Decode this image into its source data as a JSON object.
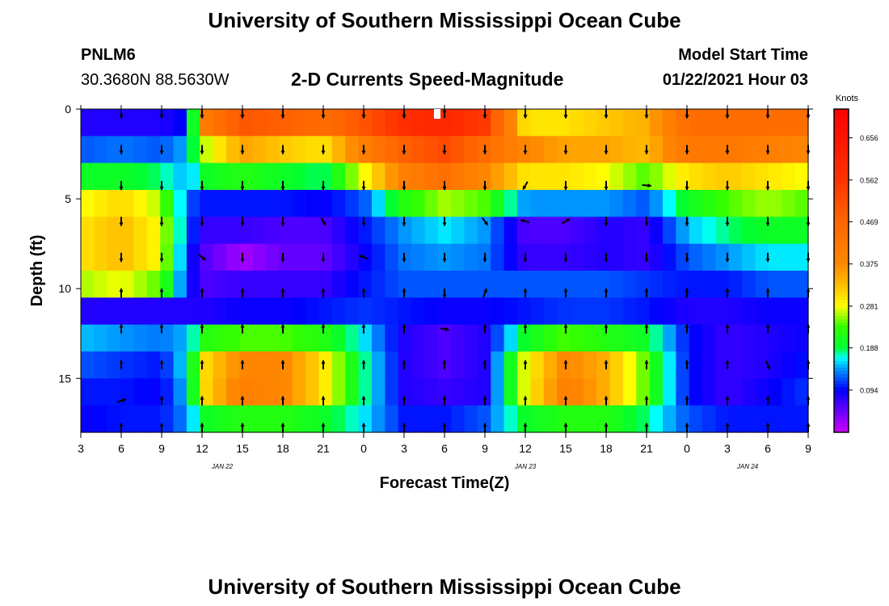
{
  "page": {
    "title_top": "University of Southern Mississippi Ocean Cube",
    "title_bottom": "University of Southern Mississippi Ocean Cube",
    "station_id": "PNLM6",
    "station_coords": "30.3680N 88.5630W",
    "plot_title": "2-D Currents Speed-Magnitude",
    "model_start_label": "Model Start Time",
    "model_start_value": "01/22/2021 Hour 03"
  },
  "chart_data": {
    "type": "heatmap",
    "title": "2-D Currents Speed-Magnitude",
    "xlabel": "Forecast Time(Z)",
    "ylabel": "Depth (ft)",
    "x_tick_labels": [
      "3",
      "6",
      "9",
      "12",
      "15",
      "18",
      "21",
      "0",
      "3",
      "6",
      "9",
      "12",
      "15",
      "18",
      "21",
      "0",
      "3",
      "6",
      "9"
    ],
    "x_hours_from_start": [
      0,
      3,
      6,
      9,
      12,
      15,
      18,
      21,
      24,
      27,
      30,
      33,
      36,
      39,
      42,
      45,
      48,
      51,
      54
    ],
    "date_labels": [
      {
        "text": "JAN 22",
        "hour": 10.5
      },
      {
        "text": "JAN 23",
        "hour": 33
      },
      {
        "text": "JAN 24",
        "hour": 49.5
      }
    ],
    "y_ticks": [
      0,
      5,
      10,
      15
    ],
    "y_tick_labels": [
      "0",
      "5",
      "10",
      "15"
    ],
    "ylim": [
      0,
      18
    ],
    "y_inverted": true,
    "x_range_hours": [
      0,
      54
    ],
    "colorbar": {
      "label": "Knots",
      "ticks": [
        0.094,
        0.188,
        0.281,
        0.375,
        0.469,
        0.562,
        0.656
      ],
      "tick_labels": [
        "0.094",
        "0.188",
        "0.281",
        "0.375",
        "0.469",
        "0.562",
        "0.656"
      ],
      "range": [
        0,
        0.72
      ],
      "stops": [
        {
          "v": 0.0,
          "c": "#cc00ff"
        },
        {
          "v": 0.047,
          "c": "#6a00ff"
        },
        {
          "v": 0.094,
          "c": "#0000ff"
        },
        {
          "v": 0.141,
          "c": "#0099ff"
        },
        {
          "v": 0.165,
          "c": "#00ffff"
        },
        {
          "v": 0.188,
          "c": "#00ff33"
        },
        {
          "v": 0.235,
          "c": "#33ff00"
        },
        {
          "v": 0.281,
          "c": "#ffff00"
        },
        {
          "v": 0.33,
          "c": "#ffbb00"
        },
        {
          "v": 0.375,
          "c": "#ff8800"
        },
        {
          "v": 0.469,
          "c": "#ff6600"
        },
        {
          "v": 0.562,
          "c": "#ff3300"
        },
        {
          "v": 0.72,
          "c": "#ff0000"
        }
      ]
    },
    "depth_bins": 12,
    "time_columns": 55,
    "speed_profile_knots": [
      {
        "t": 0,
        "v": [
          0.08,
          0.12,
          0.2,
          0.28,
          0.3,
          0.3,
          0.26,
          0.08,
          0.15,
          0.12,
          0.1,
          0.09
        ]
      },
      {
        "t": 3,
        "v": [
          0.08,
          0.13,
          0.2,
          0.31,
          0.33,
          0.33,
          0.28,
          0.08,
          0.14,
          0.11,
          0.1,
          0.1
        ]
      },
      {
        "t": 6,
        "v": [
          0.08,
          0.12,
          0.18,
          0.26,
          0.28,
          0.28,
          0.24,
          0.08,
          0.13,
          0.1,
          0.09,
          0.1
        ]
      },
      {
        "t": 8,
        "v": [
          0.1,
          0.15,
          0.14,
          0.12,
          0.12,
          0.1,
          0.1,
          0.08,
          0.15,
          0.17,
          0.16,
          0.14
        ]
      },
      {
        "t": 9,
        "v": [
          0.4,
          0.26,
          0.2,
          0.1,
          0.07,
          0.06,
          0.06,
          0.08,
          0.22,
          0.3,
          0.3,
          0.2
        ]
      },
      {
        "t": 12,
        "v": [
          0.5,
          0.35,
          0.22,
          0.1,
          0.07,
          0.02,
          0.07,
          0.09,
          0.24,
          0.38,
          0.4,
          0.22
        ]
      },
      {
        "t": 15,
        "v": [
          0.48,
          0.32,
          0.2,
          0.1,
          0.06,
          0.05,
          0.07,
          0.09,
          0.24,
          0.38,
          0.38,
          0.22
        ]
      },
      {
        "t": 18,
        "v": [
          0.45,
          0.3,
          0.18,
          0.09,
          0.06,
          0.05,
          0.07,
          0.1,
          0.22,
          0.3,
          0.3,
          0.2
        ]
      },
      {
        "t": 21,
        "v": [
          0.5,
          0.4,
          0.28,
          0.12,
          0.1,
          0.09,
          0.1,
          0.11,
          0.16,
          0.18,
          0.18,
          0.16
        ]
      },
      {
        "t": 24,
        "v": [
          0.58,
          0.48,
          0.4,
          0.22,
          0.14,
          0.13,
          0.12,
          0.1,
          0.08,
          0.08,
          0.08,
          0.1
        ]
      },
      {
        "t": 27,
        "v": [
          0.6,
          0.52,
          0.44,
          0.26,
          0.16,
          0.14,
          0.12,
          0.09,
          0.06,
          0.06,
          0.07,
          0.1
        ]
      },
      {
        "t": 30,
        "v": [
          0.55,
          0.45,
          0.38,
          0.24,
          0.14,
          0.13,
          0.12,
          0.09,
          0.08,
          0.08,
          0.08,
          0.12
        ]
      },
      {
        "t": 33,
        "v": [
          0.3,
          0.38,
          0.3,
          0.14,
          0.06,
          0.07,
          0.12,
          0.1,
          0.2,
          0.28,
          0.28,
          0.2
        ]
      },
      {
        "t": 36,
        "v": [
          0.3,
          0.35,
          0.3,
          0.14,
          0.06,
          0.07,
          0.12,
          0.11,
          0.24,
          0.38,
          0.4,
          0.22
        ]
      },
      {
        "t": 39,
        "v": [
          0.32,
          0.35,
          0.28,
          0.14,
          0.08,
          0.08,
          0.12,
          0.11,
          0.22,
          0.34,
          0.34,
          0.22
        ]
      },
      {
        "t": 42,
        "v": [
          0.34,
          0.33,
          0.24,
          0.12,
          0.07,
          0.07,
          0.11,
          0.1,
          0.2,
          0.24,
          0.24,
          0.18
        ]
      },
      {
        "t": 45,
        "v": [
          0.45,
          0.42,
          0.3,
          0.2,
          0.15,
          0.12,
          0.1,
          0.08,
          0.1,
          0.1,
          0.1,
          0.12
        ]
      },
      {
        "t": 48,
        "v": [
          0.45,
          0.42,
          0.32,
          0.24,
          0.18,
          0.14,
          0.1,
          0.08,
          0.07,
          0.07,
          0.07,
          0.1
        ]
      },
      {
        "t": 51,
        "v": [
          0.45,
          0.4,
          0.3,
          0.26,
          0.2,
          0.16,
          0.12,
          0.09,
          0.08,
          0.08,
          0.09,
          0.1
        ]
      },
      {
        "t": 54,
        "v": [
          0.45,
          0.38,
          0.28,
          0.24,
          0.2,
          0.16,
          0.12,
          0.09,
          0.09,
          0.1,
          0.11,
          0.1
        ]
      }
    ],
    "arrow_depths_ft": [
      0.25,
      2.25,
      4.25,
      6.25,
      8.25,
      10.25,
      12.25,
      14.25,
      16.25,
      17.75
    ],
    "arrow_hours": [
      3,
      6,
      9,
      12,
      15,
      18,
      21,
      24,
      27,
      30,
      33,
      36,
      39,
      42,
      45,
      48,
      51,
      54
    ],
    "arrow_default_angle_by_depth_deg": [
      180,
      180,
      180,
      180,
      180,
      0,
      0,
      0,
      0,
      0
    ],
    "arrow_overrides": [
      {
        "hour": 27,
        "depth": 0.25,
        "angle": 0
      },
      {
        "hour": 9,
        "depth": 8.25,
        "angle": 130
      },
      {
        "hour": 18,
        "depth": 6.25,
        "angle": 150
      },
      {
        "hour": 30,
        "depth": 6.25,
        "angle": 145
      },
      {
        "hour": 21,
        "depth": 8.25,
        "angle": 290
      },
      {
        "hour": 33,
        "depth": 6.25,
        "angle": 285
      },
      {
        "hour": 36,
        "depth": 6.25,
        "angle": 60
      },
      {
        "hour": 42,
        "depth": 4.25,
        "angle": 95
      },
      {
        "hour": 27,
        "depth": 12.25,
        "angle": 100
      },
      {
        "hour": 3,
        "depth": 16.25,
        "angle": 70
      },
      {
        "hour": 30,
        "depth": 10.25,
        "angle": 20
      },
      {
        "hour": 33,
        "depth": 4.25,
        "angle": 210
      },
      {
        "hour": 51,
        "depth": 14.25,
        "angle": 160
      },
      {
        "hour": 6,
        "depth": 8.25,
        "angle": 180
      },
      {
        "hour": 27,
        "depth": 10.25,
        "angle": 180
      },
      {
        "hour": 27,
        "depth": 8.25,
        "angle": 180
      }
    ]
  }
}
